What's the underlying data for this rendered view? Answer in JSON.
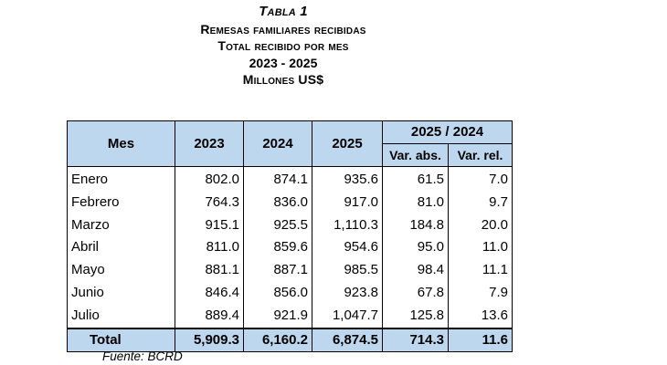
{
  "header": {
    "tabla": "Tabla 1",
    "title": "Remesas familiares recibidas",
    "subtitle": "Total recibido por mes",
    "period": "2023 - 2025",
    "units": "Millones US$"
  },
  "table": {
    "col_mes": "Mes",
    "col_2023": "2023",
    "col_2024": "2024",
    "col_2025": "2025",
    "col_group": "2025 / 2024",
    "col_abs": "Var. abs.",
    "col_rel": "Var. rel.",
    "rows": [
      {
        "mes": "Enero",
        "y2023": "802.0",
        "y2024": "874.1",
        "y2025": "935.6",
        "abs": "61.5",
        "rel": "7.0"
      },
      {
        "mes": "Febrero",
        "y2023": "764.3",
        "y2024": "836.0",
        "y2025": "917.0",
        "abs": "81.0",
        "rel": "9.7"
      },
      {
        "mes": "Marzo",
        "y2023": "915.1",
        "y2024": "925.5",
        "y2025": "1,110.3",
        "abs": "184.8",
        "rel": "20.0"
      },
      {
        "mes": "Abril",
        "y2023": "811.0",
        "y2024": "859.6",
        "y2025": "954.6",
        "abs": "95.0",
        "rel": "11.0"
      },
      {
        "mes": "Mayo",
        "y2023": "881.1",
        "y2024": "887.1",
        "y2025": "985.5",
        "abs": "98.4",
        "rel": "11.1"
      },
      {
        "mes": "Junio",
        "y2023": "846.4",
        "y2024": "856.0",
        "y2025": "923.8",
        "abs": "67.8",
        "rel": "7.9"
      },
      {
        "mes": "Julio",
        "y2023": "889.4",
        "y2024": "921.9",
        "y2025": "1,047.7",
        "abs": "125.8",
        "rel": "13.6"
      }
    ],
    "total": {
      "mes": "Total",
      "y2023": "5,909.3",
      "y2024": "6,160.2",
      "y2025": "6,874.5",
      "abs": "714.3",
      "rel": "11.6"
    }
  },
  "footer": {
    "source": "Fuente: BCRD"
  },
  "colors": {
    "header_fill": "#bdd7ee",
    "border": "#000000"
  }
}
